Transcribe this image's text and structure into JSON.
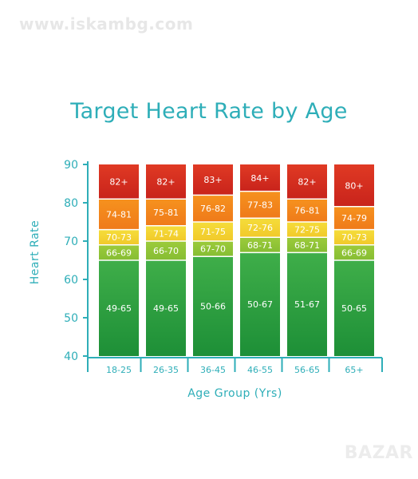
{
  "watermark": "www.iskambg.com",
  "badge": "BAZAR",
  "colors": {
    "accent": "#2eaeb8",
    "bands": [
      "#e03a24",
      "#f6921e",
      "#f5dd3b",
      "#9ccb3b",
      "#3fae49"
    ],
    "band_dark": [
      "#c8231b",
      "#ef7a1a",
      "#f1c92a",
      "#86bd33",
      "#1d8f37"
    ]
  },
  "chart_data": {
    "type": "bar",
    "title": "Target Heart Rate by Age",
    "xlabel": "Age Group (Yrs)",
    "ylabel": "Heart Rate",
    "ylim": [
      40,
      90
    ],
    "yticks": [
      40,
      50,
      60,
      70,
      80,
      90
    ],
    "categories": [
      "18-25",
      "26-35",
      "36-45",
      "46-55",
      "56-65",
      "65+"
    ],
    "bars": [
      {
        "category": "18-25",
        "segments": [
          {
            "from": 40,
            "to": 65,
            "label": "49-65"
          },
          {
            "from": 65,
            "to": 69,
            "label": "66-69"
          },
          {
            "from": 69,
            "to": 73,
            "label": "70-73"
          },
          {
            "from": 73,
            "to": 81,
            "label": "74-81"
          },
          {
            "from": 81,
            "to": 90,
            "label": "82+"
          }
        ]
      },
      {
        "category": "26-35",
        "segments": [
          {
            "from": 40,
            "to": 65,
            "label": "49-65"
          },
          {
            "from": 65,
            "to": 70,
            "label": "66-70"
          },
          {
            "from": 70,
            "to": 74,
            "label": "71-74"
          },
          {
            "from": 74,
            "to": 81,
            "label": "75-81"
          },
          {
            "from": 81,
            "to": 90,
            "label": "82+"
          }
        ]
      },
      {
        "category": "36-45",
        "segments": [
          {
            "from": 40,
            "to": 66,
            "label": "50-66"
          },
          {
            "from": 66,
            "to": 70,
            "label": "67-70"
          },
          {
            "from": 70,
            "to": 75,
            "label": "71-75"
          },
          {
            "from": 75,
            "to": 82,
            "label": "76-82"
          },
          {
            "from": 82,
            "to": 90,
            "label": "83+"
          }
        ]
      },
      {
        "category": "46-55",
        "segments": [
          {
            "from": 40,
            "to": 67,
            "label": "50-67"
          },
          {
            "from": 67,
            "to": 71,
            "label": "68-71"
          },
          {
            "from": 71,
            "to": 76,
            "label": "72-76"
          },
          {
            "from": 76,
            "to": 83,
            "label": "77-83"
          },
          {
            "from": 83,
            "to": 90,
            "label": "84+"
          }
        ]
      },
      {
        "category": "56-65",
        "segments": [
          {
            "from": 40,
            "to": 67,
            "label": "51-67"
          },
          {
            "from": 67,
            "to": 71,
            "label": "68-71"
          },
          {
            "from": 71,
            "to": 75,
            "label": "72-75"
          },
          {
            "from": 75,
            "to": 81,
            "label": "76-81"
          },
          {
            "from": 81,
            "to": 90,
            "label": "82+"
          }
        ]
      },
      {
        "category": "65+",
        "segments": [
          {
            "from": 40,
            "to": 65,
            "label": "50-65"
          },
          {
            "from": 65,
            "to": 69,
            "label": "66-69"
          },
          {
            "from": 69,
            "to": 73,
            "label": "70-73"
          },
          {
            "from": 73,
            "to": 79,
            "label": "74-79"
          },
          {
            "from": 79,
            "to": 90,
            "label": "80+"
          }
        ]
      }
    ]
  }
}
